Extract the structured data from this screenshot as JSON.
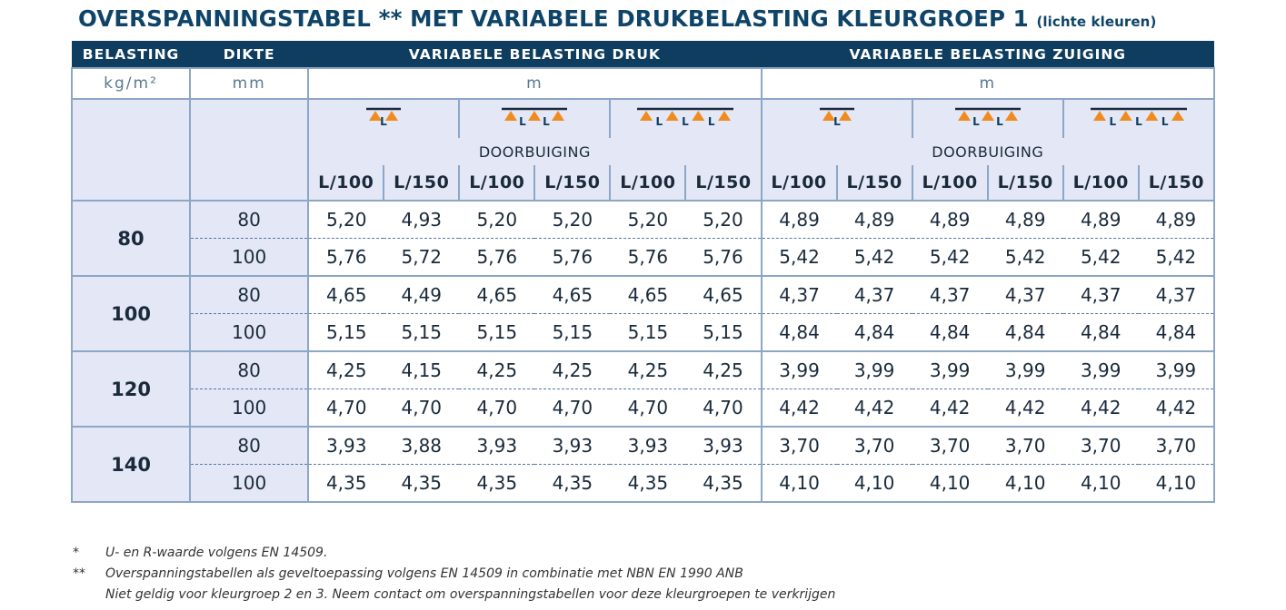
{
  "title": {
    "main": "OVERSPANNINGSTABEL ** MET VARIABELE DRUKBELASTING KLEURGROEP 1",
    "sub": "(lichte kleuren)"
  },
  "header": {
    "belasting": "BELASTING",
    "dikte": "DIKTE",
    "druk": "VARIABELE BELASTING DRUK",
    "zuiging": "VARIABELE BELASTING ZUIGING"
  },
  "units": {
    "belasting": "kg/m²",
    "dikte": "mm",
    "druk": "m",
    "zuiging": "m"
  },
  "doorbuiging": "DOORBUIGING",
  "span_glyph": "L",
  "column_labels": [
    "L/100",
    "L/150",
    "L/100",
    "L/150",
    "L/100",
    "L/150",
    "L/100",
    "L/150",
    "L/100",
    "L/150",
    "L/100",
    "L/150"
  ],
  "colors": {
    "header_bg": "#0e3d5f",
    "title": "#0e4468",
    "cell_bg": "#e3e7f6",
    "border": "#8ca7c6",
    "support_triangle": "#f08c1e"
  },
  "groups": [
    {
      "load": "80",
      "rows": [
        {
          "thickness": "80",
          "values": [
            "5,20",
            "4,93",
            "5,20",
            "5,20",
            "5,20",
            "5,20",
            "4,89",
            "4,89",
            "4,89",
            "4,89",
            "4,89",
            "4,89"
          ]
        },
        {
          "thickness": "100",
          "values": [
            "5,76",
            "5,72",
            "5,76",
            "5,76",
            "5,76",
            "5,76",
            "5,42",
            "5,42",
            "5,42",
            "5,42",
            "5,42",
            "5,42"
          ]
        }
      ]
    },
    {
      "load": "100",
      "rows": [
        {
          "thickness": "80",
          "values": [
            "4,65",
            "4,49",
            "4,65",
            "4,65",
            "4,65",
            "4,65",
            "4,37",
            "4,37",
            "4,37",
            "4,37",
            "4,37",
            "4,37"
          ]
        },
        {
          "thickness": "100",
          "values": [
            "5,15",
            "5,15",
            "5,15",
            "5,15",
            "5,15",
            "5,15",
            "4,84",
            "4,84",
            "4,84",
            "4,84",
            "4,84",
            "4,84"
          ]
        }
      ]
    },
    {
      "load": "120",
      "rows": [
        {
          "thickness": "80",
          "values": [
            "4,25",
            "4,15",
            "4,25",
            "4,25",
            "4,25",
            "4,25",
            "3,99",
            "3,99",
            "3,99",
            "3,99",
            "3,99",
            "3,99"
          ]
        },
        {
          "thickness": "100",
          "values": [
            "4,70",
            "4,70",
            "4,70",
            "4,70",
            "4,70",
            "4,70",
            "4,42",
            "4,42",
            "4,42",
            "4,42",
            "4,42",
            "4,42"
          ]
        }
      ]
    },
    {
      "load": "140",
      "rows": [
        {
          "thickness": "80",
          "values": [
            "3,93",
            "3,88",
            "3,93",
            "3,93",
            "3,93",
            "3,93",
            "3,70",
            "3,70",
            "3,70",
            "3,70",
            "3,70",
            "3,70"
          ]
        },
        {
          "thickness": "100",
          "values": [
            "4,35",
            "4,35",
            "4,35",
            "4,35",
            "4,35",
            "4,35",
            "4,10",
            "4,10",
            "4,10",
            "4,10",
            "4,10",
            "4,10"
          ]
        }
      ]
    }
  ],
  "notes": [
    {
      "mark": "*",
      "lines": [
        "U- en R-waarde volgens EN 14509."
      ]
    },
    {
      "mark": "**",
      "lines": [
        "Overspanningstabellen als geveltoepassing volgens EN 14509 in combinatie met NBN EN 1990 ANB",
        "Niet geldig voor kleurgroep 2 en 3. Neem contact om overspanningstabellen voor deze kleurgroepen te verkrijgen"
      ]
    }
  ]
}
